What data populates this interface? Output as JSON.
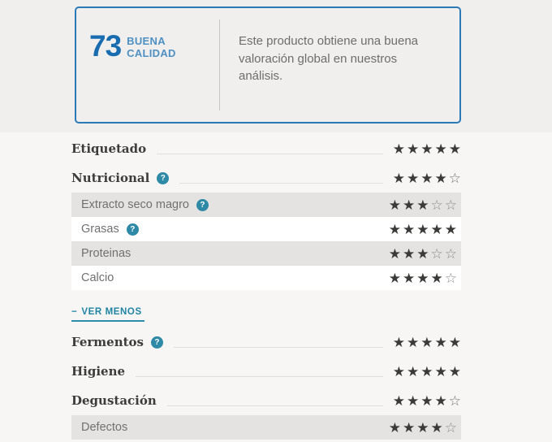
{
  "score_box": {
    "score": "73",
    "grade_line1": "BUENA",
    "grade_line2": "CALIDAD",
    "description": "Este producto obtiene una buena valoración global en nuestros análisis."
  },
  "ver_menos": {
    "prefix": "−",
    "label": "VER MENOS"
  },
  "ratings": [
    {
      "label": "Etiquetado",
      "stars": 5,
      "max": 5,
      "style": "main",
      "help": false
    },
    {
      "label": "Nutricional",
      "stars": 4,
      "max": 5,
      "style": "main",
      "help": true
    },
    {
      "label": "Extracto seco magro",
      "stars": 3,
      "max": 5,
      "style": "sub",
      "help": true,
      "shaded": true
    },
    {
      "label": "Grasas",
      "stars": 5,
      "max": 5,
      "style": "sub",
      "help": true,
      "shaded": false
    },
    {
      "label": "Proteinas",
      "stars": 3,
      "max": 5,
      "style": "sub",
      "help": false,
      "shaded": true
    },
    {
      "label": "Calcio",
      "stars": 4,
      "max": 5,
      "style": "sub",
      "help": false,
      "shaded": false
    },
    {
      "type": "link"
    },
    {
      "label": "Fermentos",
      "stars": 5,
      "max": 5,
      "style": "main",
      "help": true
    },
    {
      "label": "Higiene",
      "stars": 5,
      "max": 5,
      "style": "main",
      "help": false
    },
    {
      "label": "Degustación",
      "stars": 4,
      "max": 5,
      "style": "main",
      "help": false
    },
    {
      "label": "Defectos",
      "stars": 4,
      "max": 5,
      "style": "sub",
      "help": false,
      "shaded": true
    }
  ],
  "icons": {
    "help": "?",
    "star_filled": "★",
    "star_empty": "☆"
  },
  "colors": {
    "score_blue": "#1a6cb1",
    "grade_blue": "#4e90c3",
    "box_border_blue": "#2b7ab8",
    "band_gray": "#f0efed",
    "row_shade_gray": "#e4e3e1",
    "star_filled": "#3b3a39",
    "link_teal": "#1f84a3",
    "help_icon_teal": "#2d89a6",
    "text_dark": "#3d3c3b",
    "text_gray": "#6e6d6b"
  }
}
